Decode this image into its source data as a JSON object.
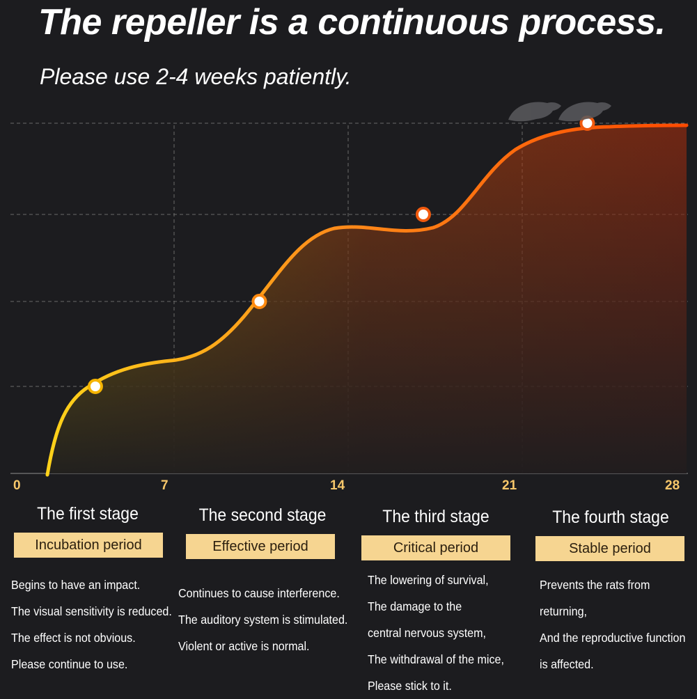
{
  "header": {
    "title": "The repeller is a continuous process.",
    "subtitle": "Please use 2-4 weeks patiently."
  },
  "chart_data": {
    "type": "line",
    "x_ticks": [
      "0",
      "7",
      "14",
      "21",
      "28"
    ],
    "xlim": [
      0,
      28
    ],
    "grid": true,
    "markers": [
      {
        "x": 3,
        "level": 1
      },
      {
        "x": 10,
        "level": 2
      },
      {
        "x": 17,
        "level": 3
      },
      {
        "x": 24,
        "level": 4
      }
    ],
    "colors": {
      "line_start": "#ffd21a",
      "line_mid": "#ff8c1a",
      "line_end": "#ff4a00",
      "grid": "#6a6a6a",
      "tick": "#f7c76a"
    },
    "decoration_icon": "rat-silhouette-icon"
  },
  "stages": [
    {
      "title": "The first stage",
      "badge": "Incubation period",
      "lines": [
        "Begins to have an impact.",
        "The visual sensitivity is reduced.",
        "The effect is not obvious.",
        "Please continue to use."
      ]
    },
    {
      "title": "The second stage",
      "badge": "Effective period",
      "lines": [
        "Continues to cause interference.",
        "The auditory system is stimulated.",
        "Violent or active is normal."
      ]
    },
    {
      "title": "The third stage",
      "badge": "Critical period",
      "lines": [
        "The lowering of survival,",
        "The damage to the",
        "central nervous system,",
        "The withdrawal of the mice,",
        "Please stick to it."
      ]
    },
    {
      "title": "The fourth stage",
      "badge": "Stable period",
      "lines": [
        "Prevents the rats from",
        "returning,",
        "And the reproductive function",
        "is affected."
      ]
    }
  ]
}
